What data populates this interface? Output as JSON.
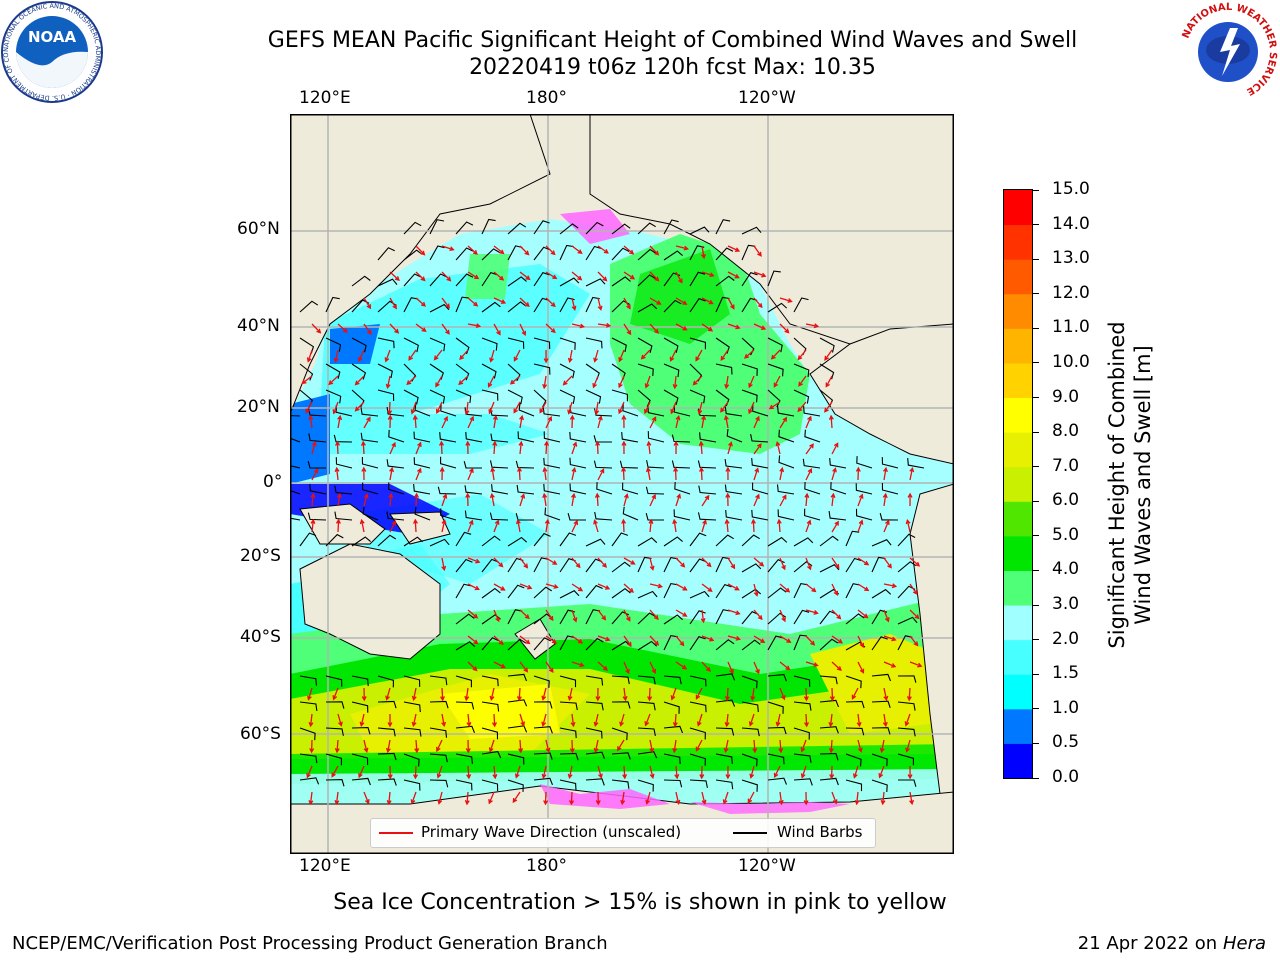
{
  "header": {
    "title_line1": "GEFS MEAN Pacific Significant Height of Combined Wind Waves and Swell",
    "title_line2": "20220419 t06z 120h fcst   Max: 10.35"
  },
  "logos": {
    "left_name": "NOAA",
    "left_ring_text": "NATIONAL OCEANIC AND ATMOSPHERIC ADMINISTRATION · U.S. DEPARTMENT OF COMMERCE",
    "right_ring_text": "NATIONAL WEATHER SERVICE"
  },
  "map": {
    "lon_labels": [
      "120°E",
      "180°",
      "120°W"
    ],
    "lat_labels": [
      "60°N",
      "40°N",
      "20°N",
      "0°",
      "20°S",
      "40°S",
      "60°S"
    ],
    "colors": {
      "land": "#efebdb",
      "grid": "#b4b4b4",
      "wave_direction": "#e81010",
      "wind_barbs": "#000000"
    }
  },
  "legend": {
    "wave_direction": "Primary Wave Direction (unscaled)",
    "wind_barbs": "Wind Barbs"
  },
  "colorbar": {
    "title_line1": "Significant Height of Combined",
    "title_line2": "Wind Waves and Swell [m]",
    "tick_labels": [
      "0.0",
      "0.5",
      "1.0",
      "1.5",
      "2.0",
      "3.0",
      "4.0",
      "5.0",
      "6.0",
      "7.0",
      "8.0",
      "9.0",
      "10.0",
      "11.0",
      "12.0",
      "13.0",
      "14.0",
      "15.0"
    ],
    "colors": [
      "#0000ff",
      "#0078ff",
      "#00ffff",
      "#48ffff",
      "#a0ffff",
      "#50ff78",
      "#00e600",
      "#50e600",
      "#c8f000",
      "#e6f000",
      "#ffff00",
      "#ffd200",
      "#ffb400",
      "#ff8c00",
      "#ff5a00",
      "#ff3200",
      "#ff0000"
    ]
  },
  "footer": {
    "note": "Sea Ice Concentration > 15% is shown in pink to yellow",
    "credit": "NCEP/EMC/Verification Post Processing Product Generation Branch",
    "date": "21 Apr 2022 on",
    "machine": "Hera"
  }
}
